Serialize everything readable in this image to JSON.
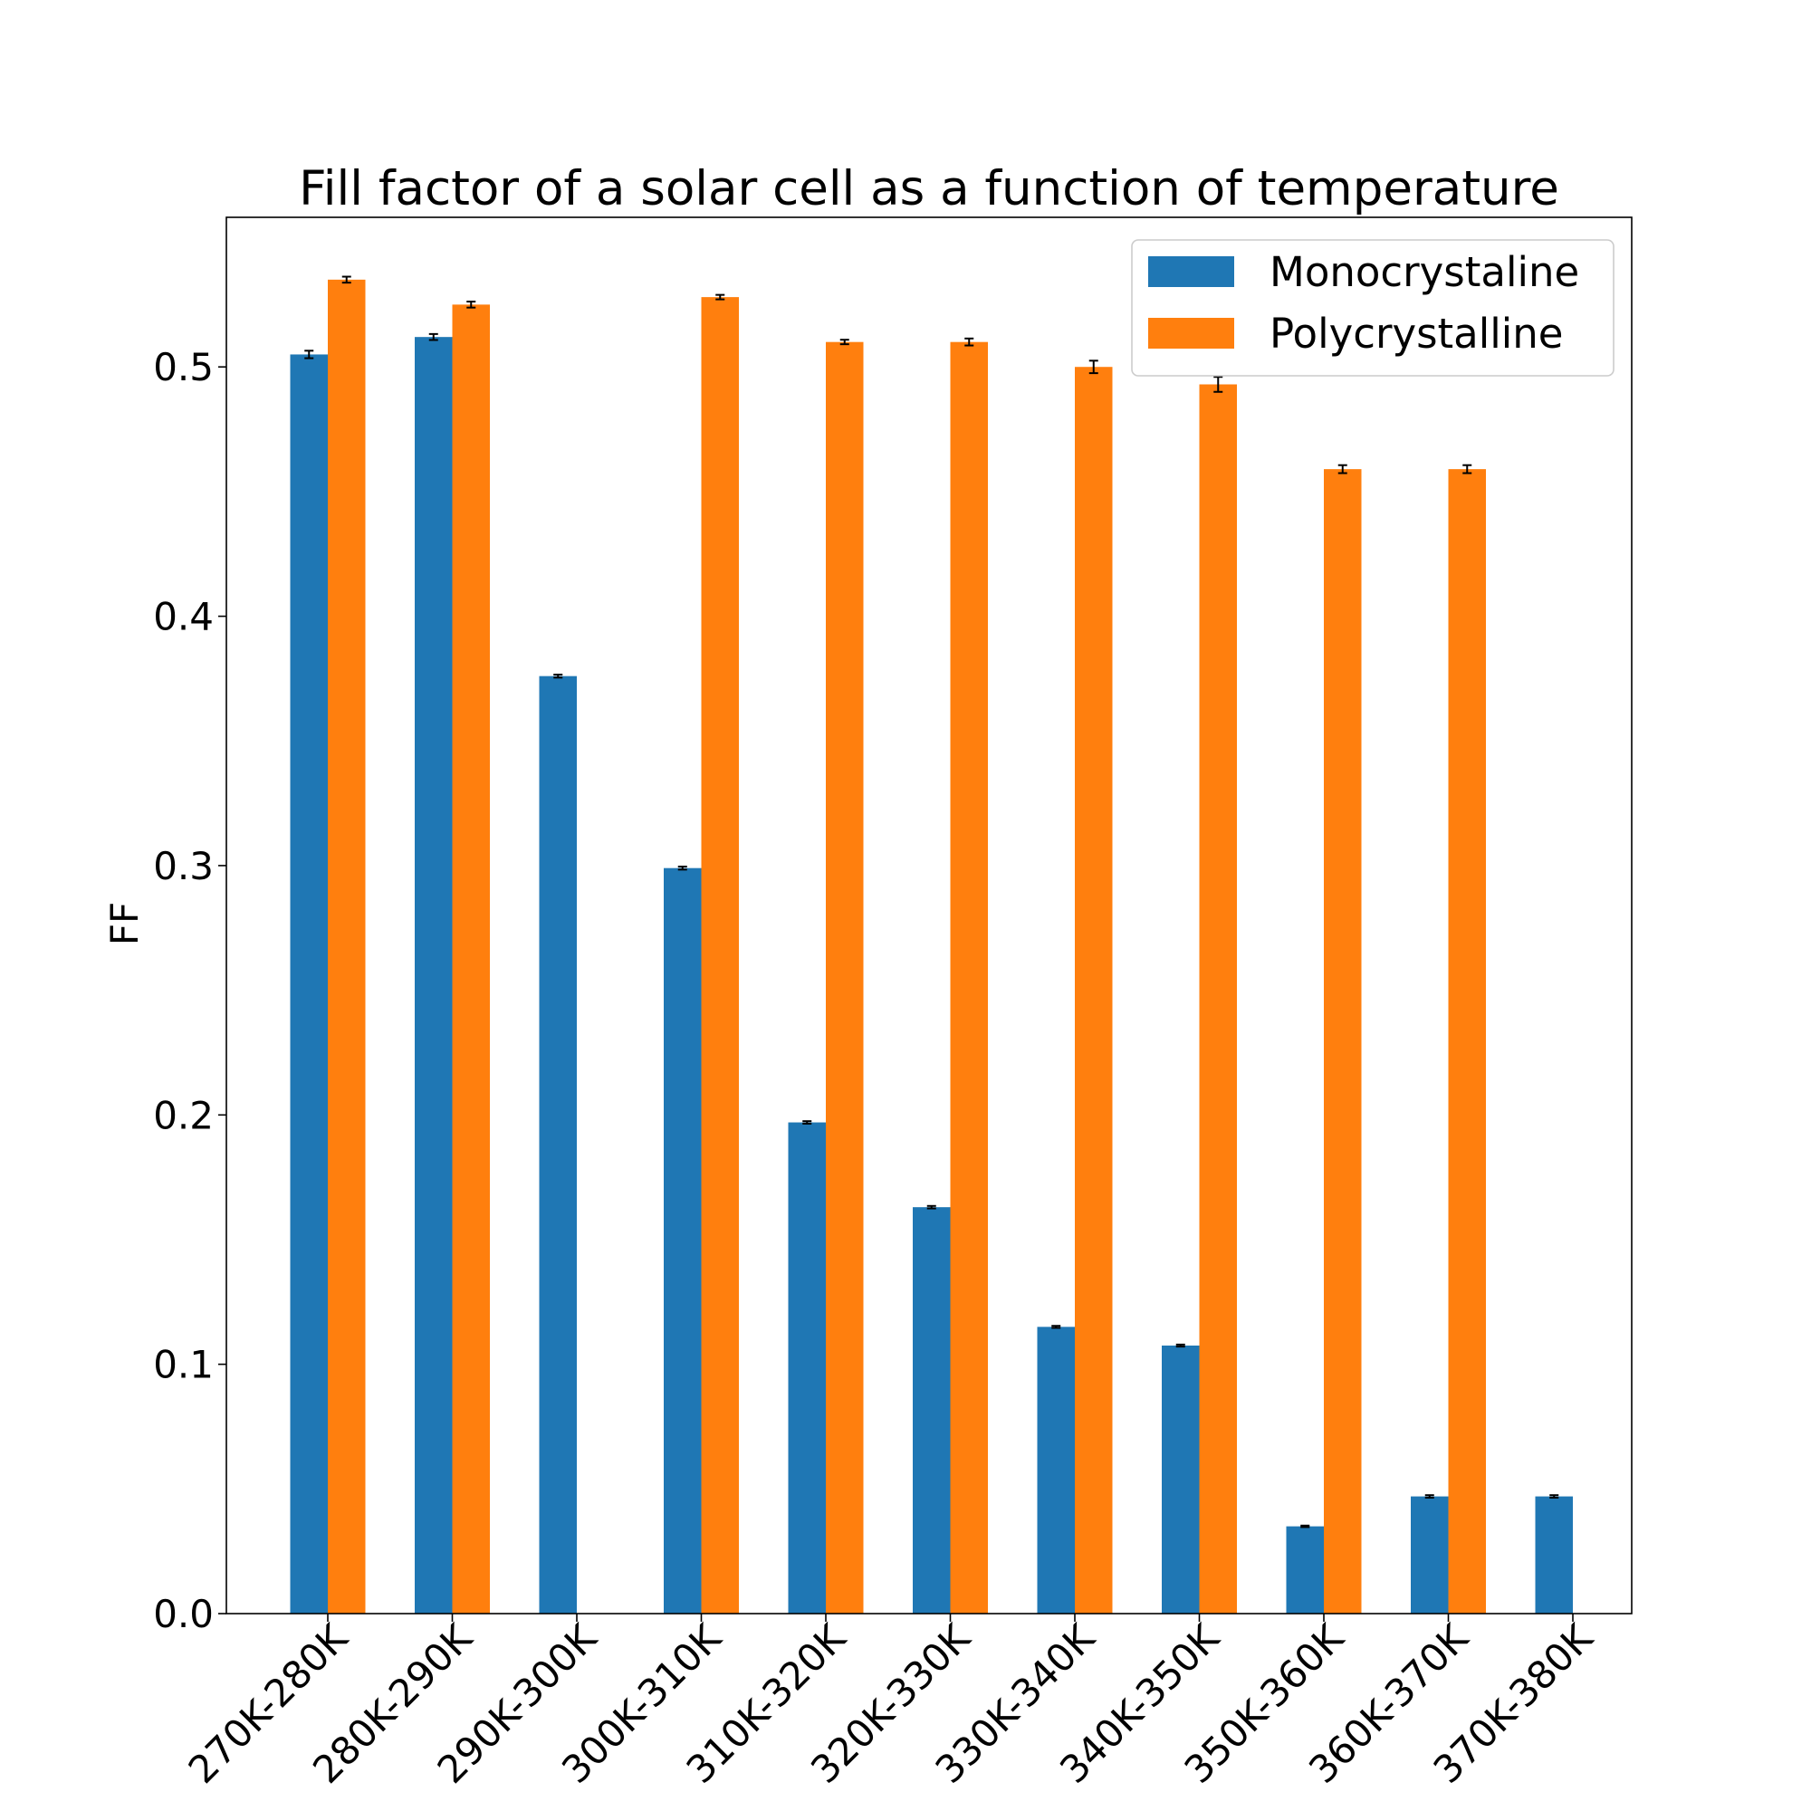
{
  "chart_data": {
    "type": "bar",
    "title": "Fill factor of a solar cell as a function of temperature",
    "xlabel": "",
    "ylabel": "FF",
    "categories": [
      "270K-280K",
      "280K-290K",
      "290K-300K",
      "300K-310K",
      "310K-320K",
      "320K-330K",
      "330K-340K",
      "340K-350K",
      "350K-360K",
      "360K-370K",
      "370K-380K"
    ],
    "series": [
      {
        "name": "Monocrystaline",
        "color": "#1f77b4",
        "values": [
          0.505,
          0.512,
          0.376,
          0.299,
          0.197,
          0.163,
          0.115,
          0.1075,
          0.035,
          0.047,
          0.047
        ],
        "errors": [
          0.0015,
          0.0012,
          0.0006,
          0.0006,
          0.0005,
          0.0005,
          0.0004,
          0.0004,
          0.0003,
          0.0005,
          0.0005
        ]
      },
      {
        "name": "Polycrystalline",
        "color": "#ff7f0e",
        "values": [
          0.535,
          0.525,
          null,
          0.528,
          0.51,
          0.51,
          0.5,
          0.493,
          0.459,
          0.459,
          null
        ],
        "errors": [
          0.0012,
          0.0012,
          null,
          0.0009,
          0.0009,
          0.0014,
          0.0025,
          0.003,
          0.0016,
          0.0016,
          null
        ]
      }
    ],
    "ylim": [
      0.0,
      0.56
    ],
    "yticks": [
      0.0,
      0.1,
      0.2,
      0.3,
      0.4,
      0.5
    ],
    "ytick_labels": [
      "0.0",
      "0.1",
      "0.2",
      "0.3",
      "0.4",
      "0.5"
    ],
    "grid": false,
    "legend_position": "top-right"
  }
}
